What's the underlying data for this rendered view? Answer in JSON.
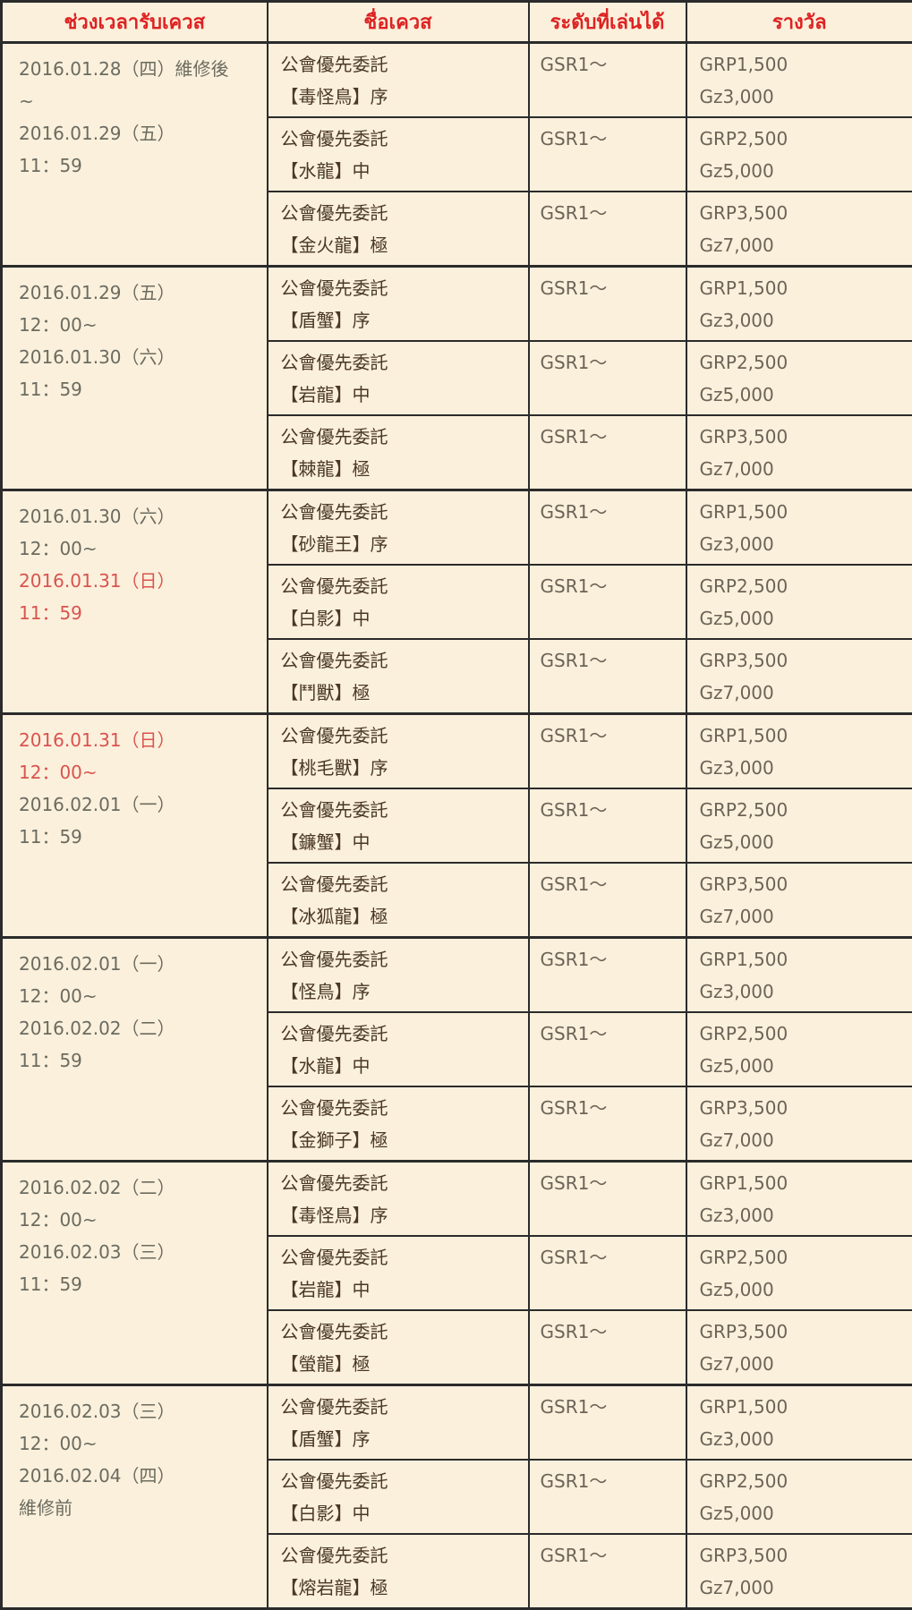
{
  "colors": {
    "cell_background": "#fbf0dc",
    "border": "#2b2b2b",
    "header_text_red": "#dd2222",
    "highlight_date_red": "#d9534f",
    "date_text_gray": "#6b6b60",
    "quest_text_dark": "#4a3826",
    "value_text_gray": "#6b6457"
  },
  "table": {
    "headers": [
      "ช่วงเวลารับเควส",
      "ชื่อเควส",
      "ระดับที่เล่นได้",
      "รางวัล"
    ],
    "groups": [
      {
        "date_lines": [
          {
            "text": "2016.01.28（四）維修後",
            "red": false
          },
          {
            "text": "~",
            "red": false
          },
          {
            "text": "2016.01.29（五）",
            "red": false
          },
          {
            "text": "11：59",
            "red": false
          }
        ],
        "quests": [
          {
            "name": "公會優先委託",
            "title": "【毒怪鳥】序",
            "level": "GSR1～",
            "reward1": "GRP1,500",
            "reward2": "Gz3,000"
          },
          {
            "name": "公會優先委託",
            "title": "【水龍】中",
            "level": "GSR1～",
            "reward1": "GRP2,500",
            "reward2": "Gz5,000"
          },
          {
            "name": "公會優先委託",
            "title": "【金火龍】極",
            "level": "GSR1～",
            "reward1": "GRP3,500",
            "reward2": "Gz7,000"
          }
        ]
      },
      {
        "date_lines": [
          {
            "text": "2016.01.29（五）",
            "red": false
          },
          {
            "text": "12：00~",
            "red": false
          },
          {
            "text": "2016.01.30（六）",
            "red": false
          },
          {
            "text": "11：59",
            "red": false
          }
        ],
        "quests": [
          {
            "name": "公會優先委託",
            "title": "【盾蟹】序",
            "level": "GSR1～",
            "reward1": "GRP1,500",
            "reward2": "Gz3,000"
          },
          {
            "name": "公會優先委託",
            "title": "【岩龍】中",
            "level": "GSR1～",
            "reward1": "GRP2,500",
            "reward2": "Gz5,000"
          },
          {
            "name": "公會優先委託",
            "title": "【棘龍】極",
            "level": "GSR1～",
            "reward1": "GRP3,500",
            "reward2": "Gz7,000"
          }
        ]
      },
      {
        "date_lines": [
          {
            "text": "2016.01.30（六）",
            "red": false
          },
          {
            "text": "12：00~",
            "red": false
          },
          {
            "text": "2016.01.31（日）",
            "red": true
          },
          {
            "text": "11：59",
            "red": true
          }
        ],
        "quests": [
          {
            "name": "公會優先委託",
            "title": "【砂龍王】序",
            "level": "GSR1～",
            "reward1": "GRP1,500",
            "reward2": "Gz3,000"
          },
          {
            "name": "公會優先委託",
            "title": "【白影】中",
            "level": "GSR1～",
            "reward1": "GRP2,500",
            "reward2": "Gz5,000"
          },
          {
            "name": "公會優先委託",
            "title": "【鬥獸】極",
            "level": "GSR1～",
            "reward1": "GRP3,500",
            "reward2": "Gz7,000"
          }
        ]
      },
      {
        "date_lines": [
          {
            "text": "2016.01.31（日）",
            "red": true
          },
          {
            "text": "12：00~",
            "red": true
          },
          {
            "text": "2016.02.01（一）",
            "red": false
          },
          {
            "text": "11：59",
            "red": false
          }
        ],
        "quests": [
          {
            "name": "公會優先委託",
            "title": "【桃毛獸】序",
            "level": "GSR1～",
            "reward1": "GRP1,500",
            "reward2": "Gz3,000"
          },
          {
            "name": "公會優先委託",
            "title": "【鐮蟹】中",
            "level": "GSR1～",
            "reward1": "GRP2,500",
            "reward2": "Gz5,000"
          },
          {
            "name": "公會優先委託",
            "title": "【冰狐龍】極",
            "level": "GSR1～",
            "reward1": "GRP3,500",
            "reward2": "Gz7,000"
          }
        ]
      },
      {
        "date_lines": [
          {
            "text": "2016.02.01（一）",
            "red": false
          },
          {
            "text": "12：00~",
            "red": false
          },
          {
            "text": "2016.02.02（二）",
            "red": false
          },
          {
            "text": "11：59",
            "red": false
          }
        ],
        "quests": [
          {
            "name": "公會優先委託",
            "title": "【怪鳥】序",
            "level": "GSR1～",
            "reward1": "GRP1,500",
            "reward2": "Gz3,000"
          },
          {
            "name": "公會優先委託",
            "title": "【水龍】中",
            "level": "GSR1～",
            "reward1": "GRP2,500",
            "reward2": "Gz5,000"
          },
          {
            "name": "公會優先委託",
            "title": "【金獅子】極",
            "level": "GSR1～",
            "reward1": "GRP3,500",
            "reward2": "Gz7,000"
          }
        ]
      },
      {
        "date_lines": [
          {
            "text": "2016.02.02（二）",
            "red": false
          },
          {
            "text": "12：00~",
            "red": false
          },
          {
            "text": "2016.02.03（三）",
            "red": false
          },
          {
            "text": "11：59",
            "red": false
          }
        ],
        "quests": [
          {
            "name": "公會優先委託",
            "title": "【毒怪鳥】序",
            "level": "GSR1～",
            "reward1": "GRP1,500",
            "reward2": "Gz3,000"
          },
          {
            "name": "公會優先委託",
            "title": "【岩龍】中",
            "level": "GSR1～",
            "reward1": "GRP2,500",
            "reward2": "Gz5,000"
          },
          {
            "name": "公會優先委託",
            "title": "【螢龍】極",
            "level": "GSR1～",
            "reward1": "GRP3,500",
            "reward2": "Gz7,000"
          }
        ]
      },
      {
        "date_lines": [
          {
            "text": "2016.02.03（三）",
            "red": false
          },
          {
            "text": "12：00~",
            "red": false
          },
          {
            "text": "2016.02.04（四）",
            "red": false
          },
          {
            "text": "維修前",
            "red": false
          }
        ],
        "quests": [
          {
            "name": "公會優先委託",
            "title": "【盾蟹】序",
            "level": "GSR1～",
            "reward1": "GRP1,500",
            "reward2": "Gz3,000"
          },
          {
            "name": "公會優先委託",
            "title": "【白影】中",
            "level": "GSR1～",
            "reward1": "GRP2,500",
            "reward2": "Gz5,000"
          },
          {
            "name": "公會優先委託",
            "title": "【熔岩龍】極",
            "level": "GSR1～",
            "reward1": "GRP3,500",
            "reward2": "Gz7,000"
          }
        ]
      }
    ]
  }
}
